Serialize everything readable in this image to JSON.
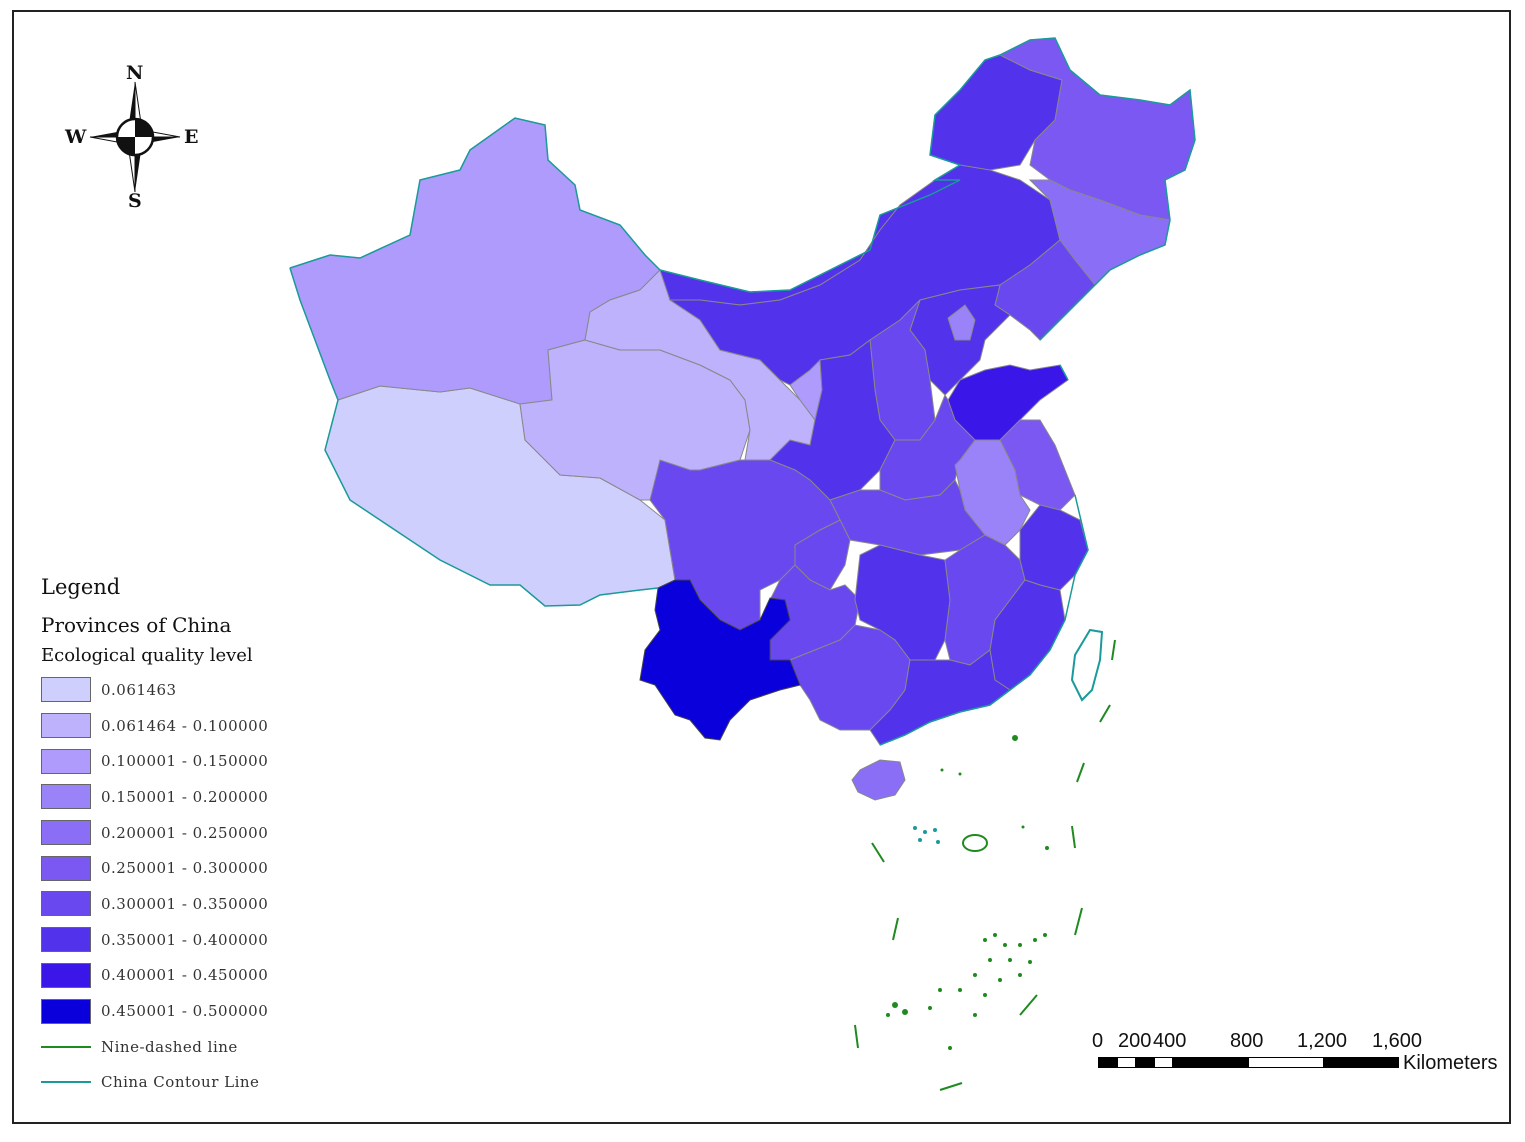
{
  "compass": {
    "north": "N",
    "south": "S",
    "east": "E",
    "west": "W"
  },
  "legend": {
    "title": "Legend",
    "layer": "Provinces of China",
    "field": "Ecological quality level",
    "classes": [
      {
        "label": "0.061463",
        "color": "#cfcffd"
      },
      {
        "label": "0.061464 - 0.100000",
        "color": "#bdb2fb"
      },
      {
        "label": "0.100001 - 0.150000",
        "color": "#ae9bfb"
      },
      {
        "label": "0.150001 - 0.200000",
        "color": "#9a82f8"
      },
      {
        "label": "0.200001 - 0.250000",
        "color": "#8a6ef6"
      },
      {
        "label": "0.250001 - 0.300000",
        "color": "#7c58f3"
      },
      {
        "label": "0.300001 - 0.350000",
        "color": "#6a48f0"
      },
      {
        "label": "0.350001 - 0.400000",
        "color": "#5232ea"
      },
      {
        "label": "0.400001 - 0.450000",
        "color": "#3a16e8"
      },
      {
        "label": "0.450001 - 0.500000",
        "color": "#0a00dc"
      }
    ],
    "lines": [
      {
        "label": "Nine-dashed line",
        "color": "#1f8a1f"
      },
      {
        "label": "China Contour Line",
        "color": "#1a9a9a"
      }
    ]
  },
  "scalebar": {
    "ticks": [
      "0",
      "200",
      "400",
      "800",
      "1,200",
      "1,600"
    ],
    "unit": "Kilometers"
  }
}
